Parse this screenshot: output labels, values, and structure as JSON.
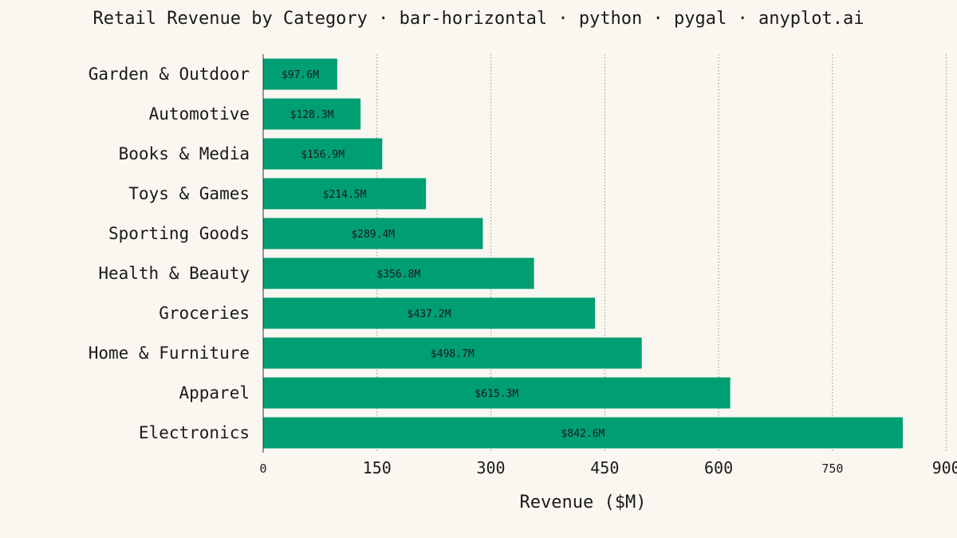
{
  "chart_data": {
    "type": "bar",
    "orientation": "horizontal",
    "title": "Retail Revenue by Category · bar-horizontal · python · pygal · anyplot.ai",
    "xlabel": "Revenue ($M)",
    "ylabel": "",
    "categories": [
      "Garden & Outdoor",
      "Automotive",
      "Books & Media",
      "Toys & Games",
      "Sporting Goods",
      "Health & Beauty",
      "Groceries",
      "Home & Furniture",
      "Apparel",
      "Electronics"
    ],
    "values": [
      97.6,
      128.3,
      156.9,
      214.5,
      289.4,
      356.8,
      437.2,
      498.7,
      615.3,
      842.6
    ],
    "value_labels": [
      "$97.6M",
      "$128.3M",
      "$156.9M",
      "$214.5M",
      "$289.4M",
      "$356.8M",
      "$437.2M",
      "$498.7M",
      "$615.3M",
      "$842.6M"
    ],
    "x_ticks": [
      0,
      150,
      300,
      450,
      600,
      750,
      900
    ],
    "x_tick_labels": [
      "0",
      "150",
      "300",
      "450",
      "600",
      "750",
      "900"
    ],
    "xlim": [
      0,
      842.6
    ],
    "grid": "vertical-dotted",
    "legend": "none",
    "colors": {
      "bar": "#009E73",
      "background": "#faf7f0",
      "text": "#1a1a1a",
      "grid": "#777777"
    }
  }
}
